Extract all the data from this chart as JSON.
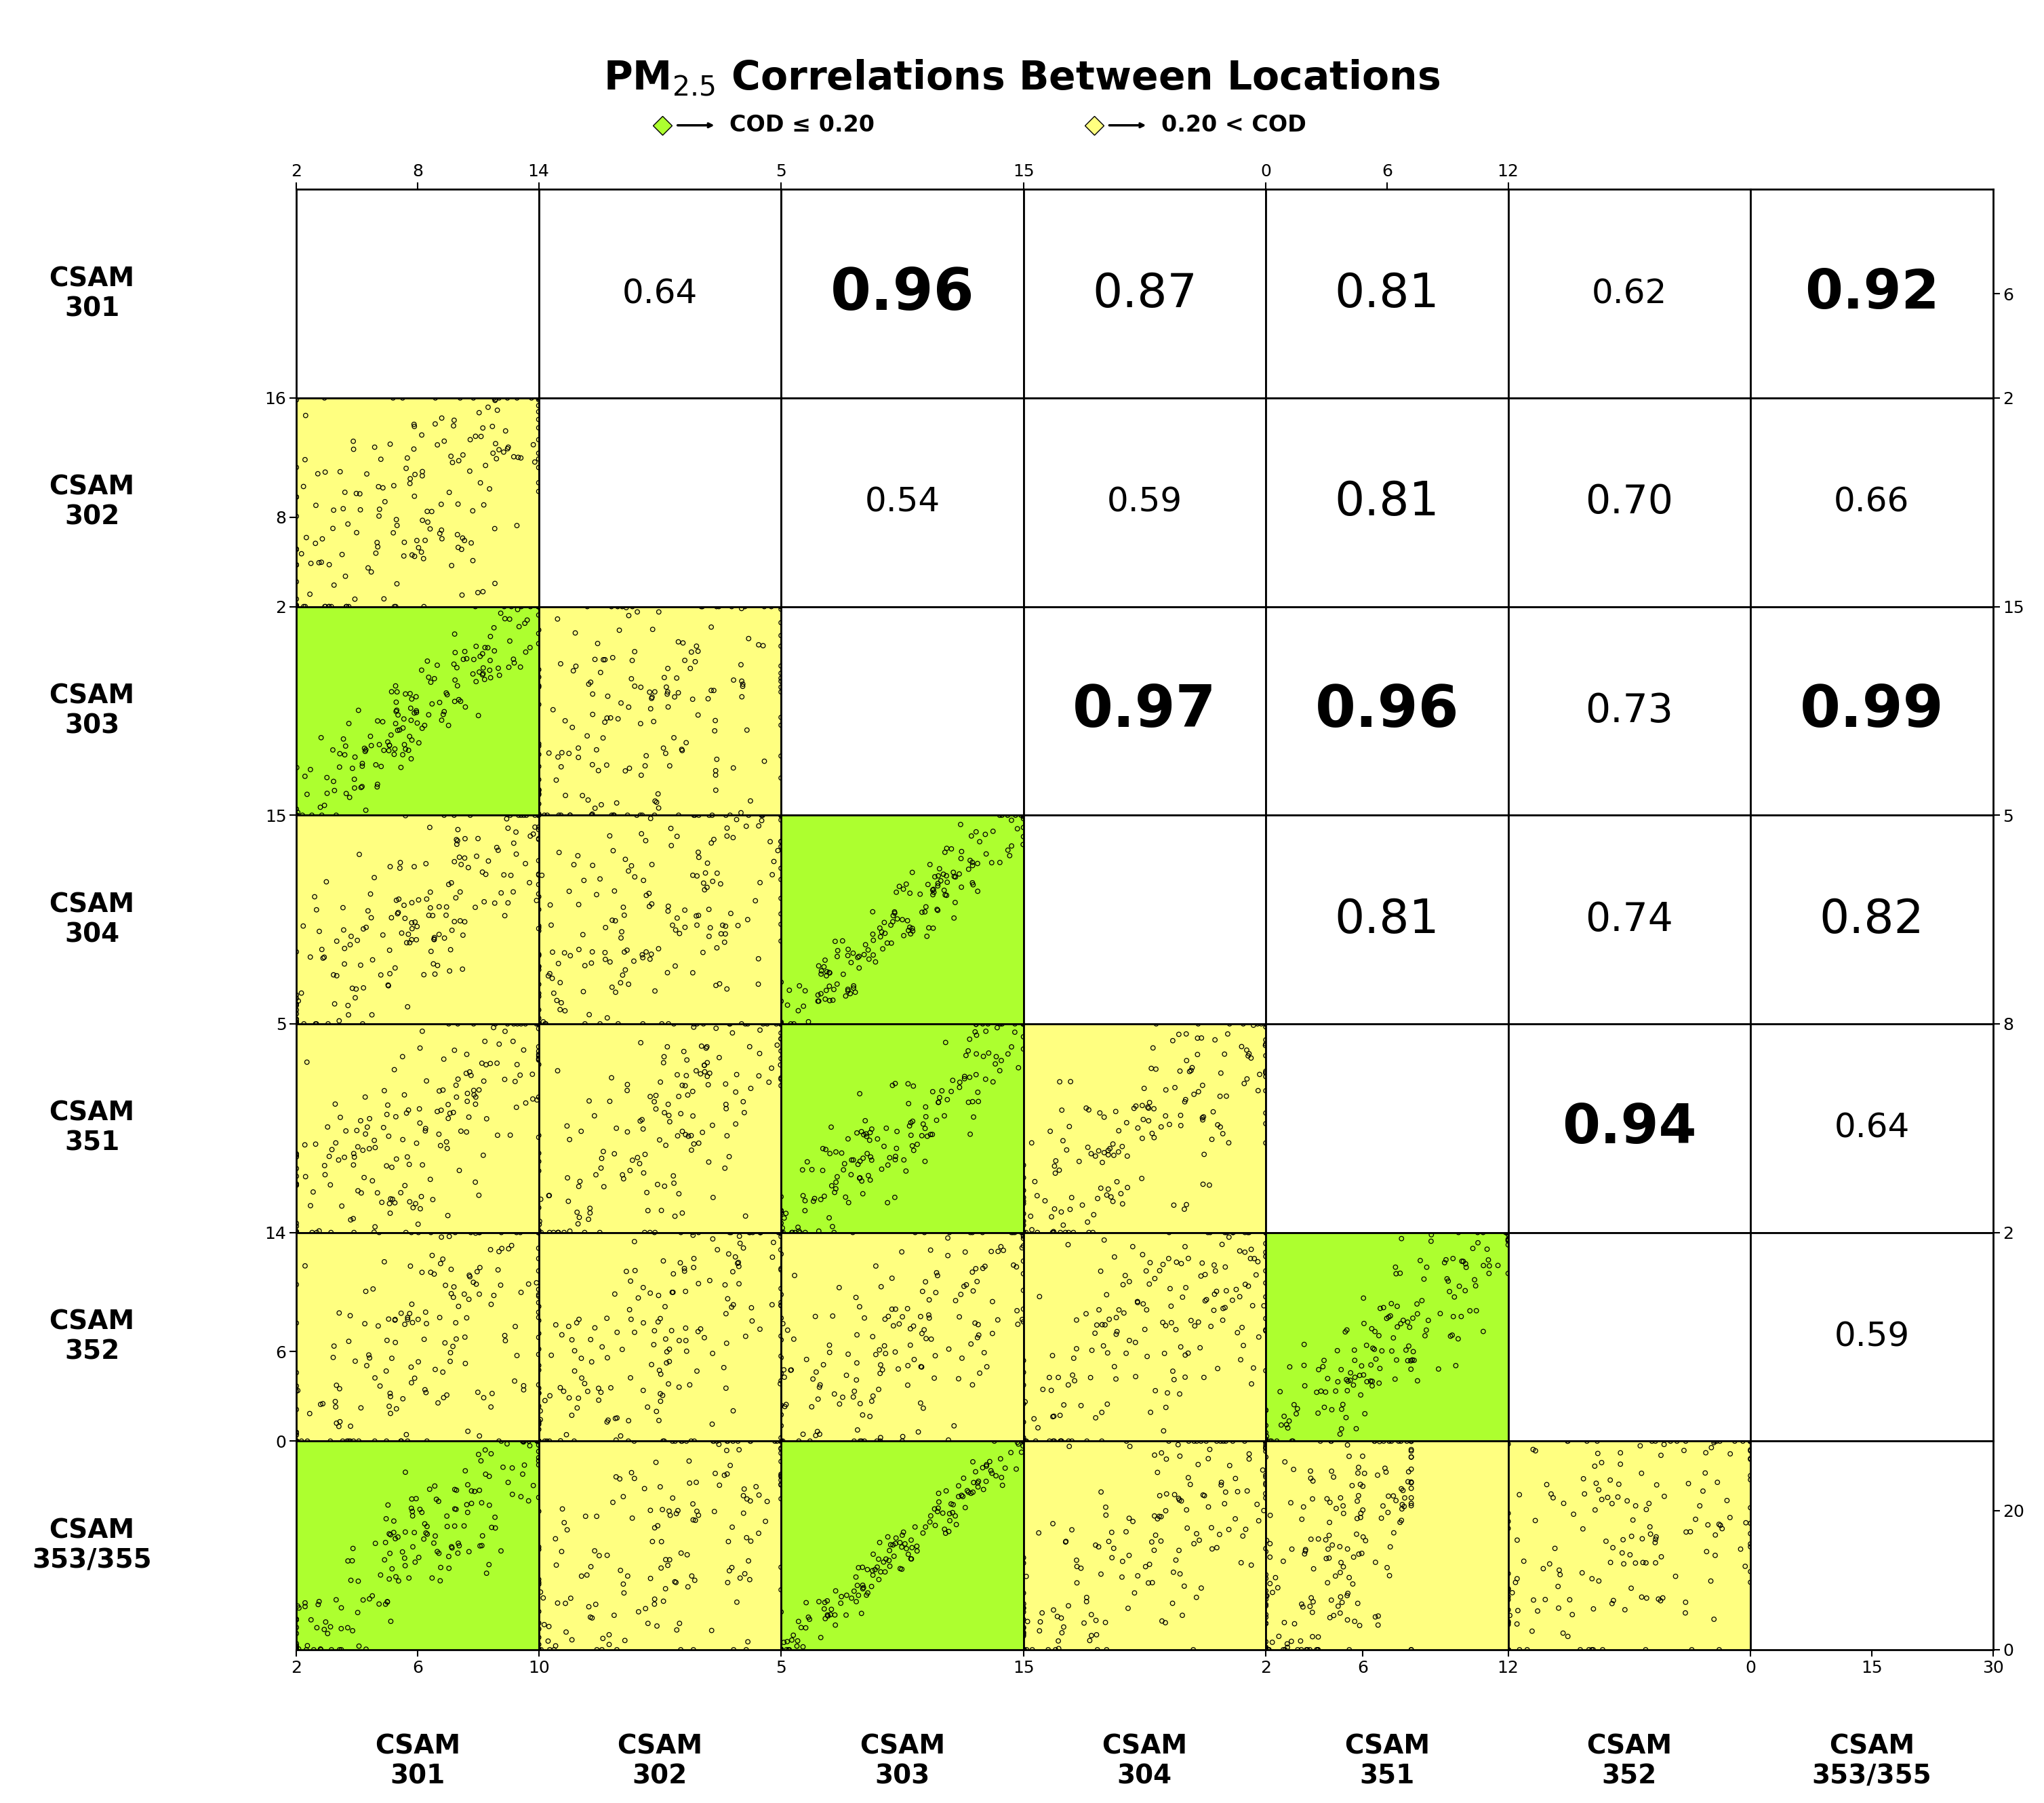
{
  "title": "PM$_{2.5}$ Correlations Between Locations",
  "locations": [
    "CSAM\n301",
    "CSAM\n302",
    "CSAM\n303",
    "CSAM\n304",
    "CSAM\n351",
    "CSAM\n352",
    "CSAM\n353/355"
  ],
  "correlations": [
    [
      null,
      0.64,
      0.96,
      0.87,
      0.81,
      0.62,
      0.92
    ],
    [
      0.64,
      null,
      0.54,
      0.59,
      0.81,
      0.7,
      0.66
    ],
    [
      0.96,
      0.54,
      null,
      0.97,
      0.96,
      0.73,
      0.99
    ],
    [
      0.87,
      0.59,
      0.97,
      null,
      0.81,
      0.74,
      0.82
    ],
    [
      0.81,
      0.81,
      0.96,
      0.81,
      null,
      0.94,
      0.64
    ],
    [
      0.62,
      0.7,
      0.73,
      0.74,
      0.94,
      null,
      0.59
    ],
    [
      0.92,
      0.66,
      0.99,
      0.82,
      0.64,
      0.59,
      null
    ]
  ],
  "axis_ranges": [
    [
      2,
      10
    ],
    [
      2,
      16
    ],
    [
      5,
      15
    ],
    [
      5,
      15
    ],
    [
      2,
      8
    ],
    [
      0,
      14
    ],
    [
      0,
      30
    ]
  ],
  "bottom_ticks": [
    [
      2,
      6,
      10
    ],
    [],
    [
      5,
      15
    ],
    [],
    [
      2,
      6,
      12
    ],
    [],
    [
      0,
      15,
      30
    ]
  ],
  "left_ticks": [
    [],
    [
      2,
      8,
      16
    ],
    [],
    [
      5,
      15
    ],
    [],
    [
      0,
      6,
      14
    ],
    []
  ],
  "top_ticks": [
    [
      2,
      8,
      14
    ],
    [],
    [
      5,
      15
    ],
    [],
    [
      0,
      6,
      12
    ],
    [],
    []
  ],
  "right_ticks": [
    [
      2,
      6
    ],
    [],
    [
      5,
      15
    ],
    [],
    [
      2,
      8
    ],
    [],
    [
      0,
      20
    ]
  ],
  "cod_threshold": 0.2,
  "color_low_cod": "#ADFF2F",
  "color_high_cod": "#FFFF80",
  "legend_label_low": "COD ≤ 0.20",
  "legend_label_high": "0.20 < COD",
  "n_scatter_pts": 200
}
